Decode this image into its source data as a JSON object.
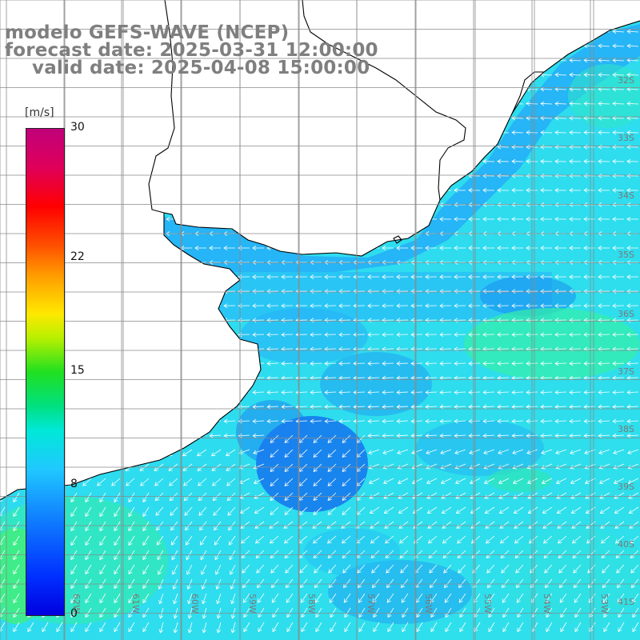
{
  "title": {
    "line1": "modelo GEFS-WAVE (NCEP)",
    "line2": "forecast date: 2025-03-31 12:00:00",
    "line3": "valid date: 2025-04-08 15:00:00"
  },
  "legend": {
    "unit": "[m/s]",
    "ticks": [
      {
        "value": 30,
        "label": "30"
      },
      {
        "value": 22,
        "label": "22"
      },
      {
        "value": 15,
        "label": "15"
      },
      {
        "value": 8,
        "label": "8"
      },
      {
        "value": 0,
        "label": "0"
      }
    ],
    "min": 0,
    "max": 30
  },
  "map": {
    "lat_labels": [
      "32S",
      "33S",
      "34S",
      "35S",
      "36S",
      "37S",
      "38S",
      "39S",
      "40S",
      "41S"
    ],
    "lon_labels": [
      "62W",
      "61W",
      "60W",
      "59W",
      "58W",
      "57W",
      "56W",
      "55W",
      "54W",
      "53W"
    ],
    "colors": {
      "ocean_light": "#2fe8e6",
      "ocean_mid": "#28c8f8",
      "ocean_blue": "#1aa0f4",
      "ocean_dark": "#1070f0",
      "ocean_green": "#2ef0a0",
      "land": "#ffffff",
      "coast": "#000000",
      "grid": "#8a8a8a",
      "arrow": "#ffffff"
    },
    "wind_direction_deg": 200
  }
}
